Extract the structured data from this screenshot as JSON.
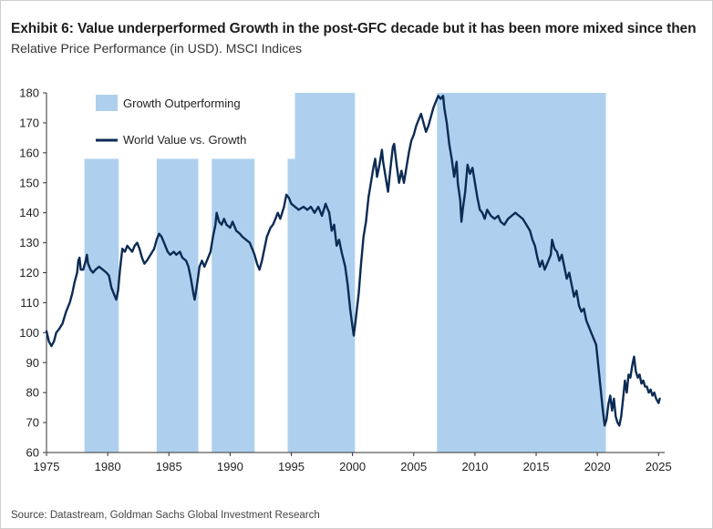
{
  "title": "Exhibit 6: Value underperformed Growth in the post-GFC decade but it has been more mixed since then",
  "subtitle": "Relative Price Performance (in USD). MSCI Indices",
  "source": "Source: Datastream, Goldman Sachs Global Investment Research",
  "chart_data": {
    "type": "line",
    "xlim": [
      1975,
      2025.5
    ],
    "ylim": [
      60,
      180
    ],
    "x_ticks": [
      1975,
      1980,
      1985,
      1990,
      1995,
      2000,
      2005,
      2010,
      2015,
      2020,
      2025
    ],
    "y_ticks": [
      60,
      70,
      80,
      90,
      100,
      110,
      120,
      130,
      140,
      150,
      160,
      170,
      180
    ],
    "legend": [
      {
        "label": "Growth Outperforming",
        "kind": "area"
      },
      {
        "label": "World Value vs. Growth",
        "kind": "line"
      }
    ],
    "colors": {
      "shade": "#aed0ee",
      "line": "#0c2b54"
    },
    "shaded_periods": [
      {
        "start": 1978.1,
        "end": 1980.9,
        "top": 158
      },
      {
        "start": 1984.0,
        "end": 1987.4,
        "top": 158
      },
      {
        "start": 1988.5,
        "end": 1992.0,
        "top": 158
      },
      {
        "start": 1994.7,
        "end": 1995.3,
        "top": 158
      },
      {
        "start": 1995.3,
        "end": 2000.2,
        "top": 180
      },
      {
        "start": 2006.9,
        "end": 2020.7,
        "top": 180
      }
    ],
    "series": [
      {
        "name": "World Value vs. Growth",
        "points": [
          [
            1975.0,
            100.5
          ],
          [
            1975.2,
            97
          ],
          [
            1975.4,
            95.5
          ],
          [
            1975.6,
            97
          ],
          [
            1975.8,
            100
          ],
          [
            1976.0,
            101
          ],
          [
            1976.3,
            103
          ],
          [
            1976.6,
            107
          ],
          [
            1976.9,
            110
          ],
          [
            1977.1,
            113
          ],
          [
            1977.3,
            117
          ],
          [
            1977.5,
            120
          ],
          [
            1977.6,
            124
          ],
          [
            1977.7,
            125
          ],
          [
            1977.8,
            121
          ],
          [
            1978.0,
            121
          ],
          [
            1978.2,
            124
          ],
          [
            1978.3,
            126
          ],
          [
            1978.4,
            123
          ],
          [
            1978.6,
            121
          ],
          [
            1978.8,
            120
          ],
          [
            1979.0,
            121
          ],
          [
            1979.3,
            122
          ],
          [
            1979.6,
            121
          ],
          [
            1979.9,
            120
          ],
          [
            1980.1,
            119
          ],
          [
            1980.3,
            115
          ],
          [
            1980.5,
            113
          ],
          [
            1980.7,
            111
          ],
          [
            1980.85,
            114
          ],
          [
            1981.0,
            121
          ],
          [
            1981.2,
            128
          ],
          [
            1981.4,
            127
          ],
          [
            1981.6,
            129
          ],
          [
            1981.8,
            128
          ],
          [
            1982.0,
            127
          ],
          [
            1982.2,
            129
          ],
          [
            1982.4,
            130
          ],
          [
            1982.6,
            128
          ],
          [
            1982.8,
            125
          ],
          [
            1983.0,
            123
          ],
          [
            1983.2,
            124
          ],
          [
            1983.5,
            126
          ],
          [
            1983.8,
            128
          ],
          [
            1984.0,
            131
          ],
          [
            1984.2,
            133
          ],
          [
            1984.4,
            132
          ],
          [
            1984.6,
            130
          ],
          [
            1984.9,
            127
          ],
          [
            1985.1,
            126
          ],
          [
            1985.4,
            127
          ],
          [
            1985.6,
            126
          ],
          [
            1985.9,
            127
          ],
          [
            1986.1,
            125
          ],
          [
            1986.4,
            124
          ],
          [
            1986.6,
            122
          ],
          [
            1986.8,
            118
          ],
          [
            1987.0,
            113
          ],
          [
            1987.1,
            111
          ],
          [
            1987.3,
            116
          ],
          [
            1987.5,
            122
          ],
          [
            1987.7,
            124
          ],
          [
            1987.9,
            122
          ],
          [
            1988.1,
            124
          ],
          [
            1988.4,
            127
          ],
          [
            1988.6,
            132
          ],
          [
            1988.8,
            136
          ],
          [
            1988.9,
            140
          ],
          [
            1989.1,
            137
          ],
          [
            1989.3,
            136
          ],
          [
            1989.5,
            138
          ],
          [
            1989.7,
            136
          ],
          [
            1990.0,
            135
          ],
          [
            1990.2,
            137
          ],
          [
            1990.5,
            134
          ],
          [
            1990.8,
            133
          ],
          [
            1991.0,
            132
          ],
          [
            1991.3,
            131
          ],
          [
            1991.6,
            130
          ],
          [
            1991.8,
            128
          ],
          [
            1992.0,
            126
          ],
          [
            1992.2,
            123
          ],
          [
            1992.4,
            121
          ],
          [
            1992.6,
            124
          ],
          [
            1992.8,
            128
          ],
          [
            1993.0,
            132
          ],
          [
            1993.3,
            135
          ],
          [
            1993.5,
            136
          ],
          [
            1993.7,
            138
          ],
          [
            1993.9,
            140
          ],
          [
            1994.1,
            138
          ],
          [
            1994.4,
            142
          ],
          [
            1994.6,
            146
          ],
          [
            1994.8,
            145
          ],
          [
            1995.0,
            143
          ],
          [
            1995.3,
            142
          ],
          [
            1995.6,
            141
          ],
          [
            1996.0,
            142
          ],
          [
            1996.3,
            141
          ],
          [
            1996.6,
            142
          ],
          [
            1996.9,
            140
          ],
          [
            1997.2,
            142
          ],
          [
            1997.5,
            139
          ],
          [
            1997.8,
            143
          ],
          [
            1998.1,
            140
          ],
          [
            1998.3,
            134
          ],
          [
            1998.5,
            136
          ],
          [
            1998.7,
            129
          ],
          [
            1998.9,
            131
          ],
          [
            1999.1,
            127
          ],
          [
            1999.4,
            122
          ],
          [
            1999.6,
            116
          ],
          [
            1999.8,
            108
          ],
          [
            2000.0,
            102
          ],
          [
            2000.1,
            99
          ],
          [
            2000.25,
            104
          ],
          [
            2000.5,
            113
          ],
          [
            2000.7,
            123
          ],
          [
            2000.9,
            132
          ],
          [
            2001.1,
            137
          ],
          [
            2001.3,
            145
          ],
          [
            2001.5,
            150
          ],
          [
            2001.7,
            155
          ],
          [
            2001.85,
            158
          ],
          [
            2002.0,
            152
          ],
          [
            2002.2,
            156
          ],
          [
            2002.4,
            161
          ],
          [
            2002.5,
            157
          ],
          [
            2002.7,
            152
          ],
          [
            2002.9,
            147
          ],
          [
            2003.1,
            155
          ],
          [
            2003.3,
            162
          ],
          [
            2003.4,
            163
          ],
          [
            2003.6,
            156
          ],
          [
            2003.8,
            150
          ],
          [
            2004.0,
            154
          ],
          [
            2004.2,
            150
          ],
          [
            2004.4,
            155
          ],
          [
            2004.6,
            160
          ],
          [
            2004.8,
            164
          ],
          [
            2005.0,
            166
          ],
          [
            2005.2,
            169
          ],
          [
            2005.4,
            171
          ],
          [
            2005.6,
            173
          ],
          [
            2005.8,
            170
          ],
          [
            2006.0,
            167
          ],
          [
            2006.2,
            169
          ],
          [
            2006.4,
            172
          ],
          [
            2006.6,
            175
          ],
          [
            2006.8,
            177
          ],
          [
            2007.0,
            179
          ],
          [
            2007.2,
            178
          ],
          [
            2007.4,
            179
          ],
          [
            2007.5,
            175
          ],
          [
            2007.7,
            170
          ],
          [
            2007.9,
            163
          ],
          [
            2008.1,
            158
          ],
          [
            2008.3,
            152
          ],
          [
            2008.5,
            157
          ],
          [
            2008.6,
            150
          ],
          [
            2008.8,
            144
          ],
          [
            2008.9,
            137
          ],
          [
            2009.0,
            141
          ],
          [
            2009.2,
            147
          ],
          [
            2009.4,
            156
          ],
          [
            2009.6,
            153
          ],
          [
            2009.8,
            155
          ],
          [
            2010.0,
            150
          ],
          [
            2010.2,
            145
          ],
          [
            2010.4,
            141
          ],
          [
            2010.6,
            140
          ],
          [
            2010.8,
            138
          ],
          [
            2011.0,
            141
          ],
          [
            2011.3,
            139
          ],
          [
            2011.6,
            138
          ],
          [
            2011.9,
            139
          ],
          [
            2012.1,
            137
          ],
          [
            2012.4,
            136
          ],
          [
            2012.7,
            138
          ],
          [
            2013.0,
            139
          ],
          [
            2013.3,
            140
          ],
          [
            2013.6,
            139
          ],
          [
            2013.9,
            138
          ],
          [
            2014.2,
            136
          ],
          [
            2014.5,
            134
          ],
          [
            2014.7,
            131
          ],
          [
            2014.9,
            129
          ],
          [
            2015.1,
            125
          ],
          [
            2015.3,
            122
          ],
          [
            2015.5,
            124
          ],
          [
            2015.7,
            121
          ],
          [
            2016.0,
            124
          ],
          [
            2016.2,
            126
          ],
          [
            2016.3,
            131
          ],
          [
            2016.5,
            128
          ],
          [
            2016.7,
            127
          ],
          [
            2016.9,
            124
          ],
          [
            2017.1,
            126
          ],
          [
            2017.3,
            122
          ],
          [
            2017.5,
            118
          ],
          [
            2017.7,
            120
          ],
          [
            2017.9,
            116
          ],
          [
            2018.1,
            112
          ],
          [
            2018.3,
            114
          ],
          [
            2018.5,
            109
          ],
          [
            2018.7,
            107
          ],
          [
            2018.9,
            108
          ],
          [
            2019.1,
            104
          ],
          [
            2019.3,
            102
          ],
          [
            2019.5,
            100
          ],
          [
            2019.7,
            98
          ],
          [
            2019.9,
            96
          ],
          [
            2020.0,
            92
          ],
          [
            2020.15,
            86
          ],
          [
            2020.3,
            80
          ],
          [
            2020.45,
            74
          ],
          [
            2020.6,
            69
          ],
          [
            2020.75,
            71
          ],
          [
            2020.9,
            76
          ],
          [
            2021.05,
            79
          ],
          [
            2021.2,
            74
          ],
          [
            2021.35,
            78
          ],
          [
            2021.5,
            72
          ],
          [
            2021.65,
            70
          ],
          [
            2021.8,
            69
          ],
          [
            2021.95,
            72
          ],
          [
            2022.1,
            78
          ],
          [
            2022.25,
            84
          ],
          [
            2022.4,
            80
          ],
          [
            2022.55,
            86
          ],
          [
            2022.7,
            85
          ],
          [
            2022.85,
            89
          ],
          [
            2023.0,
            92
          ],
          [
            2023.15,
            87
          ],
          [
            2023.3,
            85
          ],
          [
            2023.45,
            86
          ],
          [
            2023.6,
            83
          ],
          [
            2023.75,
            84
          ],
          [
            2023.9,
            82
          ],
          [
            2024.05,
            82
          ],
          [
            2024.2,
            80
          ],
          [
            2024.35,
            81
          ],
          [
            2024.5,
            79
          ],
          [
            2024.65,
            80
          ],
          [
            2024.8,
            78
          ],
          [
            2025.0,
            76.5
          ],
          [
            2025.1,
            78
          ]
        ]
      }
    ]
  }
}
